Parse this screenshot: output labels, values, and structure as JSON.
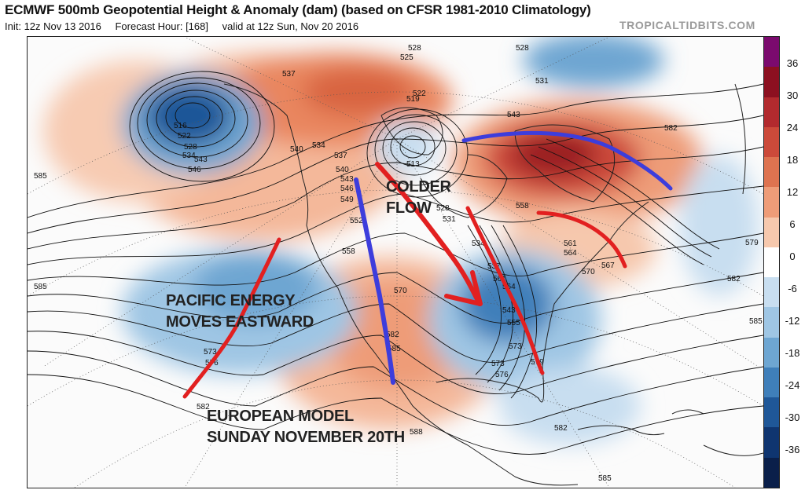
{
  "header": {
    "title": "ECMWF 500mb Geopotential Height & Anomaly (dam) (based on CFSR 1981-2010 Climatology)",
    "init": "Init: 12z Nov 13 2016",
    "forecast_hour": "Forecast Hour: [168]",
    "valid": "valid at 12z Sun, Nov 20 2016",
    "watermark": "TROPICALTIDBITS.COM"
  },
  "annotations": {
    "colder_flow": [
      "COLDER",
      "FLOW"
    ],
    "pacific": [
      "PACIFIC ENERGY",
      "MOVES EASTWARD"
    ],
    "model": [
      "EUROPEAN MODEL",
      "SUNDAY NOVEMBER 20TH"
    ]
  },
  "colorbar": {
    "labels": [
      "36",
      "30",
      "24",
      "18",
      "12",
      "6",
      "0",
      "-6",
      "-12",
      "-18",
      "-24",
      "-30",
      "-36"
    ],
    "colors": [
      "#7b0a6e",
      "#8c1020",
      "#b22a2e",
      "#cc4a3a",
      "#de7350",
      "#ee9c78",
      "#f6c8ad",
      "#ffffff",
      "#c8def0",
      "#9fc6e4",
      "#6ea6d2",
      "#3f7fba",
      "#1f5798",
      "#0f3570",
      "#0a1f4a"
    ]
  },
  "contour_labels": [
    {
      "t": "528"
    },
    {
      "t": "525"
    },
    {
      "t": "528"
    },
    {
      "t": "531"
    },
    {
      "t": "537"
    },
    {
      "t": "522"
    },
    {
      "t": "519"
    },
    {
      "t": "543"
    },
    {
      "t": "516"
    },
    {
      "t": "522"
    },
    {
      "t": "528"
    },
    {
      "t": "534"
    },
    {
      "t": "543"
    },
    {
      "t": "546"
    },
    {
      "t": "585"
    },
    {
      "t": "540"
    },
    {
      "t": "534"
    },
    {
      "t": "537"
    },
    {
      "t": "540"
    },
    {
      "t": "543"
    },
    {
      "t": "513"
    },
    {
      "t": "582"
    },
    {
      "t": "546"
    },
    {
      "t": "549"
    },
    {
      "t": "528"
    },
    {
      "t": "531"
    },
    {
      "t": "558"
    },
    {
      "t": "552"
    },
    {
      "t": "579"
    },
    {
      "t": "534"
    },
    {
      "t": "561"
    },
    {
      "t": "564"
    },
    {
      "t": "567"
    },
    {
      "t": "570"
    },
    {
      "t": "558"
    },
    {
      "t": "537"
    },
    {
      "t": "561"
    },
    {
      "t": "564"
    },
    {
      "t": "582"
    },
    {
      "t": "585"
    },
    {
      "t": "570"
    },
    {
      "t": "543"
    },
    {
      "t": "555"
    },
    {
      "t": "573"
    },
    {
      "t": "585"
    },
    {
      "t": "582"
    },
    {
      "t": "585"
    },
    {
      "t": "573"
    },
    {
      "t": "576"
    },
    {
      "t": "579"
    },
    {
      "t": "573"
    },
    {
      "t": "576"
    },
    {
      "t": "582"
    },
    {
      "t": "582"
    },
    {
      "t": "588"
    },
    {
      "t": "585"
    }
  ]
}
